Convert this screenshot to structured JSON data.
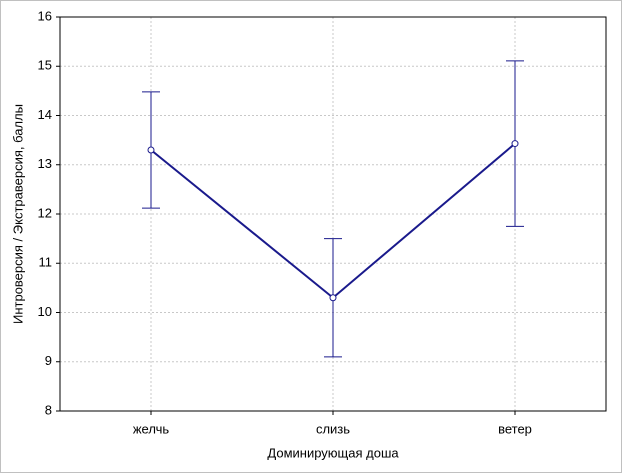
{
  "chart_data": {
    "type": "line",
    "xlabel": "Доминирующая доша",
    "ylabel": "Интроверсия / Экстраверсия, баллы",
    "categories": [
      "желчь",
      "слизь",
      "ветер"
    ],
    "values": [
      13.3,
      10.3,
      13.43
    ],
    "errors": [
      1.18,
      1.2,
      1.68
    ],
    "color": "#1a1a8c",
    "ylim": [
      8,
      16
    ],
    "yticks": [
      8,
      9,
      10,
      11,
      12,
      13,
      14,
      15,
      16
    ],
    "grid": true
  }
}
